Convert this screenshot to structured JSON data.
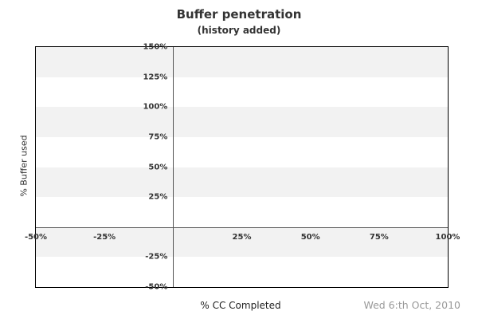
{
  "header": {
    "title": "Buffer penetration",
    "subtitle": "(history added)"
  },
  "footer": {
    "date": "Wed 6:th Oct, 2010"
  },
  "chart_data": {
    "type": "line",
    "title": "Buffer penetration",
    "subtitle": "(history added)",
    "xlabel": "% CC Completed",
    "ylabel": "% Buffer used",
    "xlim": [
      -50,
      100
    ],
    "ylim": [
      -50,
      150
    ],
    "x_ticks": [
      {
        "value": -50,
        "label": "-50%"
      },
      {
        "value": -25,
        "label": "-25%"
      },
      {
        "value": 25,
        "label": "25%"
      },
      {
        "value": 50,
        "label": "50%"
      },
      {
        "value": 75,
        "label": "75%"
      },
      {
        "value": 100,
        "label": "100%"
      }
    ],
    "y_ticks": [
      {
        "value": 150,
        "label": "150%"
      },
      {
        "value": 125,
        "label": "125%"
      },
      {
        "value": 100,
        "label": "100%"
      },
      {
        "value": 75,
        "label": "75%"
      },
      {
        "value": 50,
        "label": "50%"
      },
      {
        "value": 25,
        "label": "25%"
      },
      {
        "value": -25,
        "label": "-25%"
      },
      {
        "value": -50,
        "label": "-50%"
      }
    ],
    "origin_lines": {
      "x_at": 0,
      "y_at": 0
    },
    "bands": {
      "interval": 25,
      "start_color_at_top": "#f2f2f2",
      "alt_color": "#ffffff"
    },
    "series": [],
    "grid": "horizontal-bands",
    "legend_position": "none",
    "footnote": "Wed 6:th Oct, 2010"
  },
  "colors": {
    "text": "#333333",
    "tick_label": "#333333",
    "muted_date": "#999999",
    "band_gray": "#f2f2f2",
    "plot_border": "#000000",
    "origin_line": "#555555"
  }
}
